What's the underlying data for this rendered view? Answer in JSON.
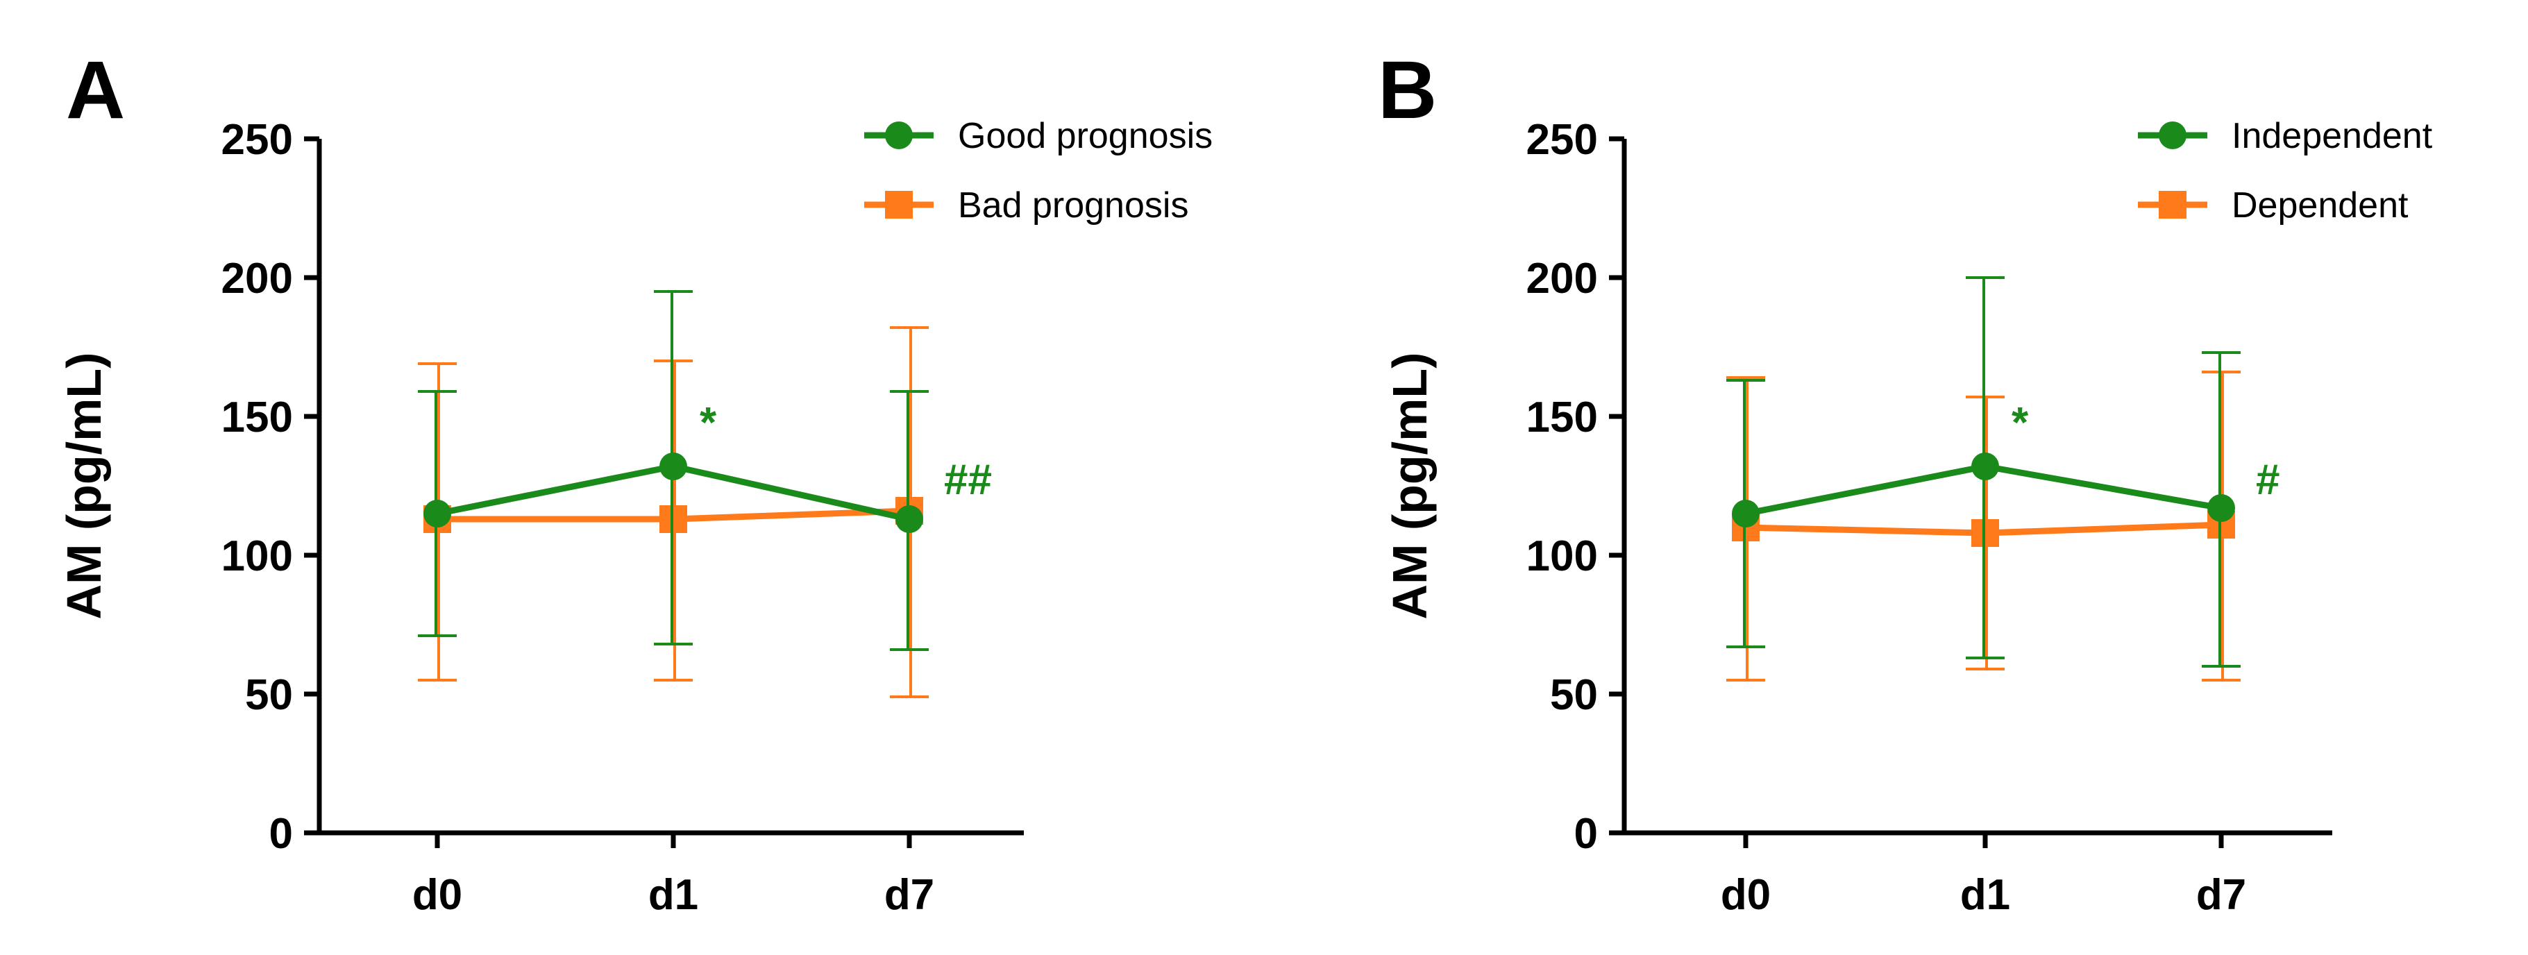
{
  "colors": {
    "good": "#1a8a1a",
    "bad": "#ff7a1a",
    "axis": "#000000"
  },
  "chart_data": [
    {
      "type": "line",
      "panel_label": "A",
      "ylabel": "AM (pg/mL)",
      "ylim": [
        0,
        250
      ],
      "yticks": [
        "0",
        "50",
        "100",
        "150",
        "200",
        "250"
      ],
      "categories": [
        "d0",
        "d1",
        "d7"
      ],
      "legend_position": "top-right",
      "series": [
        {
          "name": "Good prognosis",
          "color": "#1a8a1a",
          "marker": "circle",
          "values": [
            115,
            132,
            113
          ],
          "err_low": [
            71,
            68,
            66
          ],
          "err_high": [
            159,
            195,
            159
          ]
        },
        {
          "name": "Bad prognosis",
          "color": "#ff7a1a",
          "marker": "square",
          "values": [
            113,
            113,
            116
          ],
          "err_low": [
            55,
            55,
            49
          ],
          "err_high": [
            169,
            170,
            182
          ]
        }
      ],
      "annotations": [
        {
          "text": "*",
          "category": "d1",
          "y": 145,
          "color": "#1a8a1a"
        },
        {
          "text": "##",
          "category": "d7",
          "y": 125,
          "color": "#1a8a1a"
        }
      ]
    },
    {
      "type": "line",
      "panel_label": "B",
      "ylabel": "AM (pg/mL)",
      "ylim": [
        0,
        250
      ],
      "yticks": [
        "0",
        "50",
        "100",
        "150",
        "200",
        "250"
      ],
      "categories": [
        "d0",
        "d1",
        "d7"
      ],
      "legend_position": "top-right",
      "series": [
        {
          "name": "Independent",
          "color": "#1a8a1a",
          "marker": "circle",
          "values": [
            115,
            132,
            117
          ],
          "err_low": [
            67,
            63,
            60
          ],
          "err_high": [
            163,
            200,
            173
          ]
        },
        {
          "name": "Dependent",
          "color": "#ff7a1a",
          "marker": "square",
          "values": [
            110,
            108,
            111
          ],
          "err_low": [
            55,
            59,
            55
          ],
          "err_high": [
            164,
            157,
            166
          ]
        }
      ],
      "annotations": [
        {
          "text": "*",
          "category": "d1",
          "y": 145,
          "color": "#1a8a1a"
        },
        {
          "text": "#",
          "category": "d7",
          "y": 125,
          "color": "#1a8a1a"
        }
      ]
    }
  ]
}
